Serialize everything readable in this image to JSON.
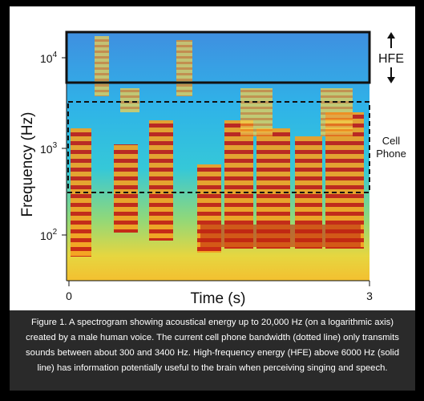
{
  "figure": {
    "y_label": "Frequency (Hz)",
    "x_label": "Time (s)",
    "yticks": [
      {
        "base": "10",
        "exp": "4"
      },
      {
        "base": "10",
        "exp": "3"
      },
      {
        "base": "10",
        "exp": "2"
      }
    ],
    "xticks": [
      "0",
      "3"
    ],
    "annotations": {
      "hfe": "HFE",
      "cell": "Cell",
      "phone": "Phone"
    }
  },
  "caption": "Figure 1. A spectrogram showing acoustical energy up to 20,000 Hz (on a logarithmic axis) created by a male human voice. The current cell phone bandwidth (dotted line) only transmits sounds between about 300 and 3400 Hz. High-frequency energy (HFE) above 6000 Hz (solid line) has information potentially useful to the brain when perceiving singing and speech."
}
